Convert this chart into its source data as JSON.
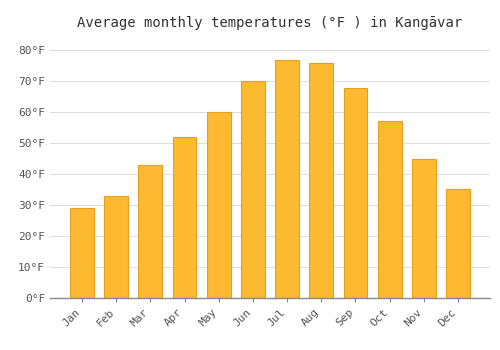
{
  "title": "Average monthly temperatures (°F ) in Kangāvar",
  "months": [
    "Jan",
    "Feb",
    "Mar",
    "Apr",
    "May",
    "Jun",
    "Jul",
    "Aug",
    "Sep",
    "Oct",
    "Nov",
    "Dec"
  ],
  "values": [
    29,
    33,
    43,
    52,
    60,
    70,
    77,
    76,
    68,
    57,
    45,
    35
  ],
  "bar_color": "#FDB931",
  "bar_edge_color": "#E8A020",
  "background_color": "#FFFFFF",
  "ylim": [
    0,
    85
  ],
  "yticks": [
    0,
    10,
    20,
    30,
    40,
    50,
    60,
    70,
    80
  ],
  "ytick_labels": [
    "0°F",
    "10°F",
    "20°F",
    "30°F",
    "40°F",
    "50°F",
    "60°F",
    "70°F",
    "80°F"
  ],
  "grid_color": "#DDDDDD",
  "title_fontsize": 10,
  "tick_fontsize": 8,
  "font_family": "monospace",
  "bar_width": 0.7
}
